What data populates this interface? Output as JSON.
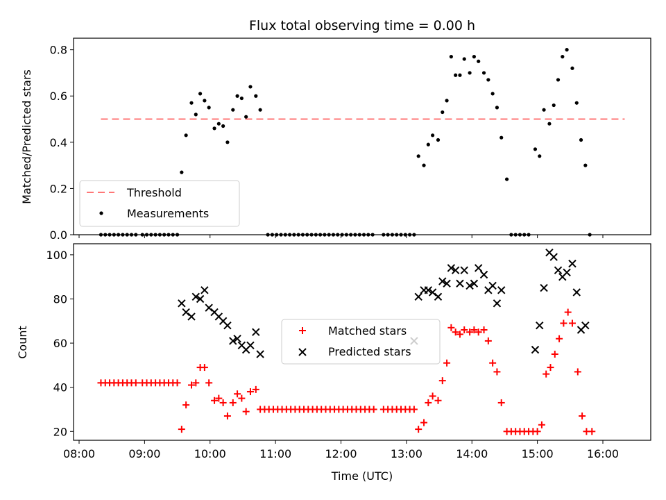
{
  "title": "Flux total observing time = 0.00 h",
  "colors": {
    "threshold": "#ff7777",
    "measurements": "#000000",
    "matched": "#ff0000",
    "predicted": "#000000"
  },
  "chart_data": [
    {
      "type": "scatter",
      "ylabel": "Matched/Predicted stars",
      "ylim": [
        0,
        0.85
      ],
      "yticks": [
        0.0,
        0.2,
        0.4,
        0.6,
        0.8
      ],
      "ytick_labels": [
        "0.0",
        "0.2",
        "0.4",
        "0.6",
        "0.8"
      ],
      "grid": false,
      "legend_position": "lower-left",
      "threshold": {
        "name": "Threshold",
        "y": 0.5,
        "x_start": "08:20",
        "x_end": "16:20"
      },
      "series": [
        {
          "name": "Measurements",
          "points": [
            [
              "08:20",
              0
            ],
            [
              "08:24",
              0
            ],
            [
              "08:28",
              0
            ],
            [
              "08:32",
              0
            ],
            [
              "08:36",
              0
            ],
            [
              "08:40",
              0
            ],
            [
              "08:44",
              0
            ],
            [
              "08:48",
              0
            ],
            [
              "08:52",
              0
            ],
            [
              "08:58",
              0
            ],
            [
              "09:02",
              0
            ],
            [
              "09:06",
              0
            ],
            [
              "09:10",
              0
            ],
            [
              "09:14",
              0
            ],
            [
              "09:18",
              0
            ],
            [
              "09:22",
              0
            ],
            [
              "09:26",
              0
            ],
            [
              "09:30",
              0
            ],
            [
              "09:34",
              0.27
            ],
            [
              "09:38",
              0.43
            ],
            [
              "09:43",
              0.57
            ],
            [
              "09:47",
              0.52
            ],
            [
              "09:51",
              0.61
            ],
            [
              "09:55",
              0.58
            ],
            [
              "09:59",
              0.55
            ],
            [
              "10:04",
              0.46
            ],
            [
              "10:08",
              0.48
            ],
            [
              "10:12",
              0.47
            ],
            [
              "10:16",
              0.4
            ],
            [
              "10:21",
              0.54
            ],
            [
              "10:25",
              0.6
            ],
            [
              "10:29",
              0.59
            ],
            [
              "10:33",
              0.51
            ],
            [
              "10:37",
              0.64
            ],
            [
              "10:42",
              0.6
            ],
            [
              "10:46",
              0.54
            ],
            [
              "10:53",
              0
            ],
            [
              "10:57",
              0
            ],
            [
              "11:01",
              0
            ],
            [
              "11:05",
              0
            ],
            [
              "11:09",
              0
            ],
            [
              "11:13",
              0
            ],
            [
              "11:17",
              0
            ],
            [
              "11:21",
              0
            ],
            [
              "11:25",
              0
            ],
            [
              "11:29",
              0
            ],
            [
              "11:33",
              0
            ],
            [
              "11:37",
              0
            ],
            [
              "11:41",
              0
            ],
            [
              "11:45",
              0
            ],
            [
              "11:49",
              0
            ],
            [
              "11:53",
              0
            ],
            [
              "11:57",
              0
            ],
            [
              "12:01",
              0
            ],
            [
              "12:05",
              0
            ],
            [
              "12:09",
              0
            ],
            [
              "12:13",
              0
            ],
            [
              "12:17",
              0
            ],
            [
              "12:21",
              0
            ],
            [
              "12:25",
              0
            ],
            [
              "12:29",
              0
            ],
            [
              "12:39",
              0
            ],
            [
              "12:43",
              0
            ],
            [
              "12:47",
              0
            ],
            [
              "12:51",
              0
            ],
            [
              "12:55",
              0
            ],
            [
              "12:59",
              0
            ],
            [
              "13:03",
              0
            ],
            [
              "13:07",
              0
            ],
            [
              "13:11",
              0.34
            ],
            [
              "13:16",
              0.3
            ],
            [
              "13:20",
              0.39
            ],
            [
              "13:24",
              0.43
            ],
            [
              "13:29",
              0.41
            ],
            [
              "13:33",
              0.53
            ],
            [
              "13:37",
              0.58
            ],
            [
              "13:41",
              0.77
            ],
            [
              "13:45",
              0.69
            ],
            [
              "13:49",
              0.69
            ],
            [
              "13:53",
              0.76
            ],
            [
              "13:58",
              0.7
            ],
            [
              "14:02",
              0.77
            ],
            [
              "14:06",
              0.75
            ],
            [
              "14:11",
              0.7
            ],
            [
              "14:15",
              0.67
            ],
            [
              "14:19",
              0.61
            ],
            [
              "14:23",
              0.55
            ],
            [
              "14:27",
              0.42
            ],
            [
              "14:32",
              0.24
            ],
            [
              "14:36",
              0
            ],
            [
              "14:40",
              0
            ],
            [
              "14:44",
              0
            ],
            [
              "14:48",
              0
            ],
            [
              "14:52",
              0
            ],
            [
              "14:58",
              0.37
            ],
            [
              "15:02",
              0.34
            ],
            [
              "15:06",
              0.54
            ],
            [
              "15:11",
              0.48
            ],
            [
              "15:15",
              0.56
            ],
            [
              "15:19",
              0.67
            ],
            [
              "15:23",
              0.77
            ],
            [
              "15:27",
              0.8
            ],
            [
              "15:32",
              0.72
            ],
            [
              "15:36",
              0.57
            ],
            [
              "15:40",
              0.41
            ],
            [
              "15:44",
              0.3
            ],
            [
              "15:48",
              0
            ]
          ]
        }
      ]
    },
    {
      "type": "scatter",
      "xlabel": "Time (UTC)",
      "ylabel": "Count",
      "ylim": [
        16,
        105
      ],
      "yticks": [
        20,
        40,
        60,
        80,
        100
      ],
      "ytick_labels": [
        "20",
        "40",
        "60",
        "80",
        "100"
      ],
      "xticks": [
        "08:00",
        "09:00",
        "10:00",
        "11:00",
        "12:00",
        "13:00",
        "14:00",
        "15:00",
        "16:00"
      ],
      "grid": false,
      "legend_position": "center",
      "series": [
        {
          "name": "Matched stars",
          "points": [
            [
              "08:20",
              42
            ],
            [
              "08:24",
              42
            ],
            [
              "08:28",
              42
            ],
            [
              "08:32",
              42
            ],
            [
              "08:36",
              42
            ],
            [
              "08:40",
              42
            ],
            [
              "08:44",
              42
            ],
            [
              "08:48",
              42
            ],
            [
              "08:52",
              42
            ],
            [
              "08:58",
              42
            ],
            [
              "09:02",
              42
            ],
            [
              "09:06",
              42
            ],
            [
              "09:10",
              42
            ],
            [
              "09:14",
              42
            ],
            [
              "09:18",
              42
            ],
            [
              "09:22",
              42
            ],
            [
              "09:26",
              42
            ],
            [
              "09:30",
              42
            ],
            [
              "09:34",
              21
            ],
            [
              "09:38",
              32
            ],
            [
              "09:43",
              41
            ],
            [
              "09:47",
              42
            ],
            [
              "09:51",
              49
            ],
            [
              "09:55",
              49
            ],
            [
              "09:59",
              42
            ],
            [
              "10:04",
              34
            ],
            [
              "10:08",
              35
            ],
            [
              "10:12",
              33
            ],
            [
              "10:16",
              27
            ],
            [
              "10:21",
              33
            ],
            [
              "10:25",
              37
            ],
            [
              "10:29",
              35
            ],
            [
              "10:33",
              29
            ],
            [
              "10:37",
              38
            ],
            [
              "10:42",
              39
            ],
            [
              "10:46",
              30
            ],
            [
              "10:50",
              30
            ],
            [
              "10:54",
              30
            ],
            [
              "10:58",
              30
            ],
            [
              "11:02",
              30
            ],
            [
              "11:06",
              30
            ],
            [
              "11:10",
              30
            ],
            [
              "11:14",
              30
            ],
            [
              "11:18",
              30
            ],
            [
              "11:22",
              30
            ],
            [
              "11:26",
              30
            ],
            [
              "11:30",
              30
            ],
            [
              "11:34",
              30
            ],
            [
              "11:38",
              30
            ],
            [
              "11:42",
              30
            ],
            [
              "11:46",
              30
            ],
            [
              "11:50",
              30
            ],
            [
              "11:54",
              30
            ],
            [
              "11:58",
              30
            ],
            [
              "12:02",
              30
            ],
            [
              "12:06",
              30
            ],
            [
              "12:10",
              30
            ],
            [
              "12:14",
              30
            ],
            [
              "12:18",
              30
            ],
            [
              "12:22",
              30
            ],
            [
              "12:26",
              30
            ],
            [
              "12:30",
              30
            ],
            [
              "12:39",
              30
            ],
            [
              "12:43",
              30
            ],
            [
              "12:47",
              30
            ],
            [
              "12:51",
              30
            ],
            [
              "12:55",
              30
            ],
            [
              "12:59",
              30
            ],
            [
              "13:03",
              30
            ],
            [
              "13:07",
              30
            ],
            [
              "13:11",
              21
            ],
            [
              "13:16",
              24
            ],
            [
              "13:20",
              33
            ],
            [
              "13:24",
              36
            ],
            [
              "13:29",
              34
            ],
            [
              "13:33",
              43
            ],
            [
              "13:37",
              51
            ],
            [
              "13:41",
              67
            ],
            [
              "13:45",
              65
            ],
            [
              "13:49",
              64
            ],
            [
              "13:53",
              66
            ],
            [
              "13:58",
              65
            ],
            [
              "14:02",
              66
            ],
            [
              "14:06",
              65
            ],
            [
              "14:11",
              66
            ],
            [
              "14:15",
              61
            ],
            [
              "14:19",
              51
            ],
            [
              "14:23",
              47
            ],
            [
              "14:27",
              33
            ],
            [
              "14:32",
              20
            ],
            [
              "14:36",
              20
            ],
            [
              "14:40",
              20
            ],
            [
              "14:44",
              20
            ],
            [
              "14:48",
              20
            ],
            [
              "14:52",
              20
            ],
            [
              "14:56",
              20
            ],
            [
              "15:00",
              20
            ],
            [
              "15:04",
              23
            ],
            [
              "15:08",
              46
            ],
            [
              "15:12",
              49
            ],
            [
              "15:16",
              55
            ],
            [
              "15:20",
              62
            ],
            [
              "15:24",
              69
            ],
            [
              "15:28",
              74
            ],
            [
              "15:32",
              69
            ],
            [
              "15:37",
              47
            ],
            [
              "15:41",
              27
            ],
            [
              "15:45",
              20
            ],
            [
              "15:50",
              20
            ]
          ]
        },
        {
          "name": "Predicted stars",
          "points": [
            [
              "09:34",
              78
            ],
            [
              "09:38",
              74
            ],
            [
              "09:43",
              72
            ],
            [
              "09:47",
              81
            ],
            [
              "09:51",
              80
            ],
            [
              "09:55",
              84
            ],
            [
              "09:59",
              76
            ],
            [
              "10:04",
              74
            ],
            [
              "10:08",
              72
            ],
            [
              "10:12",
              70
            ],
            [
              "10:16",
              68
            ],
            [
              "10:21",
              61
            ],
            [
              "10:25",
              62
            ],
            [
              "10:29",
              59
            ],
            [
              "10:33",
              57
            ],
            [
              "10:37",
              59
            ],
            [
              "10:42",
              65
            ],
            [
              "10:46",
              55
            ],
            [
              "13:07",
              61
            ],
            [
              "13:11",
              81
            ],
            [
              "13:16",
              84
            ],
            [
              "13:20",
              84
            ],
            [
              "13:24",
              83
            ],
            [
              "13:29",
              81
            ],
            [
              "13:33",
              88
            ],
            [
              "13:37",
              87
            ],
            [
              "13:41",
              94
            ],
            [
              "13:45",
              93
            ],
            [
              "13:49",
              87
            ],
            [
              "13:53",
              93
            ],
            [
              "13:58",
              86
            ],
            [
              "14:02",
              87
            ],
            [
              "14:06",
              94
            ],
            [
              "14:11",
              91
            ],
            [
              "14:15",
              84
            ],
            [
              "14:19",
              86
            ],
            [
              "14:23",
              78
            ],
            [
              "14:27",
              84
            ],
            [
              "14:58",
              57
            ],
            [
              "15:02",
              68
            ],
            [
              "15:06",
              85
            ],
            [
              "15:11",
              101
            ],
            [
              "15:15",
              99
            ],
            [
              "15:19",
              93
            ],
            [
              "15:23",
              90
            ],
            [
              "15:27",
              92
            ],
            [
              "15:32",
              96
            ],
            [
              "15:36",
              83
            ],
            [
              "15:40",
              66
            ],
            [
              "15:44",
              68
            ]
          ]
        }
      ]
    }
  ]
}
